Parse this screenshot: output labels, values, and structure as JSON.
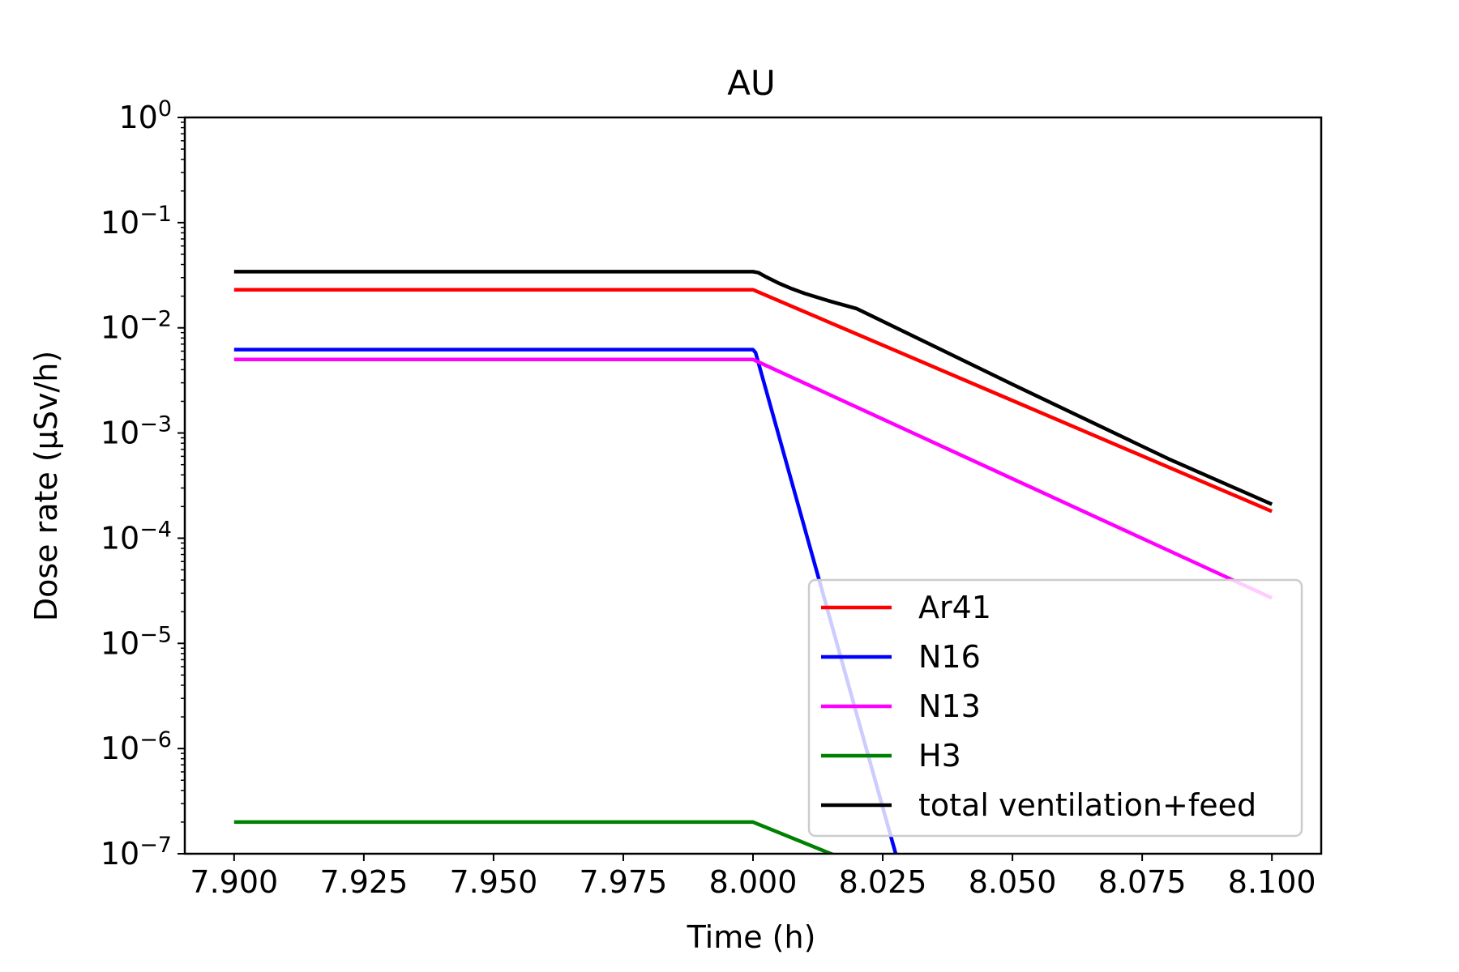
{
  "chart_data": {
    "type": "line",
    "title": "AU",
    "xlabel": "Time (h)",
    "ylabel": "Dose rate (μSv/h)",
    "xlim": [
      7.8905,
      8.1095
    ],
    "ylim": [
      1e-07,
      1
    ],
    "yscale": "log",
    "grid": false,
    "legend_position": "lower right",
    "x_ticks": [
      "7.900",
      "7.925",
      "7.950",
      "7.975",
      "8.000",
      "8.025",
      "8.050",
      "8.075",
      "8.100"
    ],
    "y_ticks": [
      {
        "base": "10",
        "exp": "0"
      },
      {
        "base": "10",
        "exp": "−1"
      },
      {
        "base": "10",
        "exp": "−2"
      },
      {
        "base": "10",
        "exp": "−3"
      },
      {
        "base": "10",
        "exp": "−4"
      },
      {
        "base": "10",
        "exp": "−5"
      },
      {
        "base": "10",
        "exp": "−6"
      },
      {
        "base": "10",
        "exp": "−7"
      }
    ],
    "series": [
      {
        "name": "Ar41",
        "color": "#ff0000",
        "x": [
          7.9,
          8.0,
          8.1
        ],
        "y": [
          0.023,
          0.023,
          0.00018
        ]
      },
      {
        "name": "N16",
        "color": "#0000ff",
        "x": [
          7.9,
          8.0,
          8.0005,
          8.0275,
          8.035
        ],
        "y": [
          0.0062,
          0.0062,
          0.0058,
          1e-07,
          8e-09
        ]
      },
      {
        "name": "N13",
        "color": "#ff00ff",
        "x": [
          7.9,
          8.0,
          8.1
        ],
        "y": [
          0.005,
          0.005,
          2.7e-05
        ]
      },
      {
        "name": "H3",
        "color": "#008000",
        "x": [
          7.9,
          8.0,
          8.015,
          8.03
        ],
        "y": [
          2e-07,
          2e-07,
          1e-07,
          5e-08
        ]
      },
      {
        "name": "total ventilation+feed",
        "color": "#000000",
        "x": [
          7.9,
          8.0,
          8.001,
          8.0025,
          8.005,
          8.0075,
          8.01,
          8.015,
          8.02,
          8.05,
          8.08,
          8.1
        ],
        "y": [
          0.0342,
          0.0342,
          0.0335,
          0.0305,
          0.0265,
          0.0235,
          0.0212,
          0.0178,
          0.0152,
          0.0029,
          0.00057,
          0.00021
        ]
      }
    ]
  }
}
